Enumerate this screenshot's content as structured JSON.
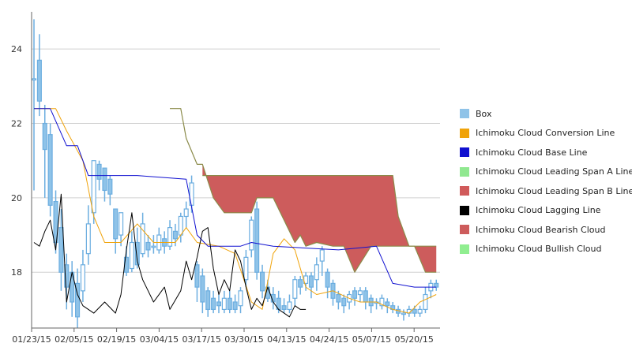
{
  "chart_data": {
    "type": "candlestick",
    "x_tick_labels": [
      "01/23/15",
      "02/05/15",
      "02/19/15",
      "03/04/15",
      "03/17/15",
      "03/30/15",
      "04/13/15",
      "04/24/15",
      "05/07/15",
      "05/20/15"
    ],
    "y_tick_labels": [
      "18",
      "20",
      "22",
      "24"
    ],
    "ylim": [
      16.5,
      25
    ],
    "y_ticks": [
      18,
      20,
      22,
      24
    ],
    "grid": "horizontal",
    "legend_position": "right",
    "colors": {
      "box": "#8FC3E8",
      "box_outline": "#6CAEE0",
      "conversion": "#F0A30A",
      "base": "#1010D0",
      "span_a": "#90E890",
      "span_b": "#D05A5A",
      "lagging": "#000000",
      "bearish": "#CD5C5C",
      "bullish": "#90EE90",
      "span_line": "#8B8B4A",
      "grid": "#D0D0D0"
    },
    "legend": [
      {
        "label": "Box",
        "color": "#8FC3E8"
      },
      {
        "label": "Ichimoku Cloud Conversion Line",
        "color": "#F0A30A"
      },
      {
        "label": "Ichimoku Cloud Base Line",
        "color": "#1010D0"
      },
      {
        "label": "Ichimoku Cloud Leading Span A Line",
        "color": "#90E890"
      },
      {
        "label": "Ichimoku Cloud Leading Span B Line",
        "color": "#D05A5A"
      },
      {
        "label": "Ichimoku Cloud Lagging Line",
        "color": "#000000"
      },
      {
        "label": "Ichimoku Cloud Bearish Cloud",
        "color": "#CD5C5C"
      },
      {
        "label": "Ichimoku Cloud Bullish Cloud",
        "color": "#90EE90"
      }
    ],
    "candles": [
      [
        23.2,
        23.2,
        24.8,
        20.2
      ],
      [
        23.7,
        22.6,
        24.4,
        22.2
      ],
      [
        22.0,
        21.3,
        22.5,
        20.0
      ],
      [
        21.7,
        19.8,
        22.0,
        19.5
      ],
      [
        19.9,
        18.8,
        20.2,
        18.5
      ],
      [
        19.2,
        18.0,
        19.7,
        17.5
      ],
      [
        18.2,
        17.6,
        18.5,
        17.0
      ],
      [
        18.0,
        17.2,
        18.3,
        16.8
      ],
      [
        17.7,
        16.8,
        18.1,
        16.5
      ],
      [
        17.5,
        18.2,
        18.6,
        17.2
      ],
      [
        18.5,
        19.3,
        19.8,
        18.2
      ],
      [
        19.6,
        21.0,
        21.0,
        19.3
      ],
      [
        20.9,
        20.5,
        21.0,
        20.2
      ],
      [
        20.8,
        20.2,
        20.8,
        19.9
      ],
      [
        20.5,
        20.1,
        20.6,
        19.8
      ],
      [
        19.7,
        18.9,
        19.7,
        18.5
      ],
      [
        19.0,
        19.6,
        19.6,
        18.7
      ],
      [
        18.4,
        18.0,
        18.7,
        17.9
      ],
      [
        18.1,
        18.8,
        19.1,
        18.0
      ],
      [
        18.8,
        18.2,
        19.2,
        18.1
      ],
      [
        18.5,
        19.3,
        19.6,
        18.4
      ],
      [
        18.8,
        18.6,
        19.0,
        18.4
      ],
      [
        18.7,
        18.7,
        19.0,
        18.5
      ],
      [
        18.6,
        19.0,
        19.2,
        18.5
      ],
      [
        18.9,
        18.7,
        19.1,
        18.5
      ],
      [
        18.7,
        19.2,
        19.4,
        18.6
      ],
      [
        19.1,
        18.9,
        19.3,
        18.7
      ],
      [
        19.0,
        19.5,
        19.6,
        18.8
      ],
      [
        19.5,
        19.7,
        19.9,
        19.2
      ],
      [
        19.8,
        20.4,
        20.6,
        19.6
      ],
      [
        18.2,
        17.6,
        18.3,
        17.2
      ],
      [
        17.9,
        17.2,
        18.1,
        16.9
      ],
      [
        17.5,
        17.0,
        17.6,
        16.8
      ],
      [
        17.3,
        17.0,
        17.5,
        16.9
      ],
      [
        17.2,
        17.1,
        17.4,
        16.9
      ],
      [
        17.0,
        17.3,
        17.5,
        16.9
      ],
      [
        17.3,
        17.0,
        17.5,
        16.9
      ],
      [
        17.2,
        17.0,
        17.4,
        16.9
      ],
      [
        17.1,
        17.5,
        17.6,
        16.9
      ],
      [
        17.8,
        18.4,
        18.6,
        17.6
      ],
      [
        18.6,
        19.4,
        19.5,
        18.4
      ],
      [
        19.7,
        18.0,
        19.9,
        17.8
      ],
      [
        18.0,
        17.5,
        18.2,
        17.3
      ],
      [
        17.6,
        17.3,
        17.8,
        17.2
      ],
      [
        17.4,
        17.2,
        17.6,
        17.0
      ],
      [
        17.3,
        17.0,
        17.5,
        16.9
      ],
      [
        17.1,
        17.0,
        17.3,
        16.9
      ],
      [
        17.0,
        17.2,
        17.4,
        16.9
      ],
      [
        17.3,
        17.8,
        17.9,
        17.1
      ],
      [
        17.8,
        17.6,
        17.9,
        17.4
      ],
      [
        17.7,
        17.9,
        18.0,
        17.5
      ],
      [
        17.9,
        17.6,
        18.0,
        17.3
      ],
      [
        17.8,
        18.2,
        18.4,
        17.5
      ],
      [
        18.3,
        18.6,
        18.7,
        17.9
      ],
      [
        18.0,
        17.6,
        18.1,
        17.3
      ],
      [
        17.7,
        17.3,
        17.8,
        17.1
      ],
      [
        17.4,
        17.2,
        17.5,
        17.0
      ],
      [
        17.3,
        17.1,
        17.4,
        16.9
      ],
      [
        17.2,
        17.4,
        17.5,
        17.0
      ],
      [
        17.5,
        17.3,
        17.6,
        17.1
      ],
      [
        17.4,
        17.5,
        17.6,
        17.2
      ],
      [
        17.5,
        17.2,
        17.6,
        17.0
      ],
      [
        17.3,
        17.1,
        17.4,
        16.9
      ],
      [
        17.2,
        17.2,
        17.3,
        17.0
      ],
      [
        17.1,
        17.3,
        17.4,
        17.0
      ],
      [
        17.2,
        17.1,
        17.3,
        16.9
      ],
      [
        17.1,
        17.0,
        17.2,
        16.9
      ],
      [
        17.0,
        16.9,
        17.1,
        16.8
      ],
      [
        16.9,
        16.9,
        17.0,
        16.7
      ],
      [
        16.9,
        17.0,
        17.1,
        16.8
      ],
      [
        17.0,
        16.9,
        17.1,
        16.8
      ],
      [
        16.9,
        17.0,
        17.1,
        16.8
      ],
      [
        17.0,
        17.4,
        17.6,
        16.9
      ],
      [
        17.5,
        17.7,
        17.8,
        17.3
      ],
      [
        17.7,
        17.6,
        17.8,
        17.5
      ]
    ],
    "conversion_line": [
      [
        0,
        22.4
      ],
      [
        4,
        22.4
      ],
      [
        6,
        21.8
      ],
      [
        9,
        21.0
      ],
      [
        11,
        19.5
      ],
      [
        13,
        18.8
      ],
      [
        16,
        18.8
      ],
      [
        19,
        19.3
      ],
      [
        22,
        18.8
      ],
      [
        26,
        18.8
      ],
      [
        28,
        19.2
      ],
      [
        30,
        18.8
      ],
      [
        34,
        18.7
      ],
      [
        37,
        18.5
      ],
      [
        40,
        17.2
      ],
      [
        42,
        17.0
      ],
      [
        44,
        18.5
      ],
      [
        46,
        18.9
      ],
      [
        48,
        18.6
      ],
      [
        50,
        17.6
      ],
      [
        52,
        17.4
      ],
      [
        55,
        17.5
      ],
      [
        58,
        17.3
      ],
      [
        60,
        17.2
      ],
      [
        63,
        17.2
      ],
      [
        66,
        17.0
      ],
      [
        69,
        16.9
      ],
      [
        71,
        17.2
      ],
      [
        74,
        17.4
      ]
    ],
    "base_line": [
      [
        0,
        22.4
      ],
      [
        3,
        22.4
      ],
      [
        6,
        21.4
      ],
      [
        8,
        21.4
      ],
      [
        10,
        20.6
      ],
      [
        19,
        20.6
      ],
      [
        28,
        20.5
      ],
      [
        30,
        19.0
      ],
      [
        32,
        18.7
      ],
      [
        38,
        18.7
      ],
      [
        40,
        18.8
      ],
      [
        44,
        18.7
      ],
      [
        56,
        18.6
      ],
      [
        63,
        18.7
      ],
      [
        66,
        17.7
      ],
      [
        70,
        17.6
      ],
      [
        74,
        17.6
      ]
    ],
    "span_a_line": [
      [
        25,
        22.4
      ],
      [
        27,
        22.4
      ],
      [
        28,
        21.6
      ],
      [
        30,
        20.9
      ],
      [
        31,
        20.9
      ],
      [
        33,
        20.0
      ],
      [
        35,
        19.6
      ],
      [
        40,
        19.6
      ],
      [
        41,
        20.0
      ],
      [
        44,
        20.0
      ],
      [
        46,
        19.4
      ],
      [
        48,
        18.8
      ],
      [
        49,
        19.0
      ],
      [
        50,
        18.7
      ],
      [
        52,
        18.8
      ],
      [
        55,
        18.7
      ],
      [
        57,
        18.7
      ],
      [
        59,
        18.0
      ],
      [
        62,
        18.7
      ],
      [
        70,
        18.7
      ],
      [
        72,
        18.0
      ],
      [
        74,
        18.0
      ]
    ],
    "span_b_line": [
      [
        31,
        20.6
      ],
      [
        66,
        20.6
      ],
      [
        67,
        19.5
      ],
      [
        69,
        18.7
      ],
      [
        74,
        18.7
      ]
    ],
    "lagging_line": [
      [
        0,
        18.8
      ],
      [
        1,
        18.7
      ],
      [
        2,
        19.1
      ],
      [
        3,
        19.4
      ],
      [
        4,
        18.6
      ],
      [
        5,
        20.1
      ],
      [
        6,
        17.2
      ],
      [
        7,
        18.0
      ],
      [
        8,
        17.4
      ],
      [
        9,
        17.1
      ],
      [
        11,
        16.9
      ],
      [
        13,
        17.2
      ],
      [
        15,
        16.9
      ],
      [
        16,
        17.4
      ],
      [
        17,
        18.6
      ],
      [
        18,
        19.6
      ],
      [
        19,
        18.3
      ],
      [
        20,
        17.8
      ],
      [
        22,
        17.2
      ],
      [
        24,
        17.6
      ],
      [
        25,
        17.0
      ],
      [
        27,
        17.5
      ],
      [
        28,
        18.3
      ],
      [
        29,
        17.8
      ],
      [
        30,
        18.4
      ],
      [
        31,
        19.1
      ],
      [
        32,
        19.2
      ],
      [
        33,
        18.1
      ],
      [
        34,
        17.4
      ],
      [
        35,
        17.8
      ],
      [
        36,
        17.5
      ],
      [
        37,
        18.6
      ],
      [
        38,
        18.3
      ],
      [
        39,
        17.6
      ],
      [
        40,
        17.0
      ],
      [
        41,
        17.3
      ],
      [
        42,
        17.1
      ],
      [
        43,
        17.6
      ],
      [
        44,
        17.2
      ],
      [
        45,
        17.0
      ],
      [
        46,
        16.9
      ],
      [
        47,
        16.8
      ],
      [
        48,
        17.1
      ],
      [
        49,
        17.0
      ],
      [
        50,
        17.0
      ]
    ],
    "bearish_cloud": [
      [
        31,
        20.6,
        20.9
      ],
      [
        33,
        20.6,
        20.0
      ],
      [
        35,
        20.6,
        19.6
      ],
      [
        40,
        20.6,
        19.6
      ],
      [
        41,
        20.6,
        20.0
      ],
      [
        44,
        20.6,
        20.0
      ],
      [
        46,
        20.6,
        19.4
      ],
      [
        48,
        20.6,
        18.8
      ],
      [
        49,
        20.6,
        19.0
      ],
      [
        50,
        20.6,
        18.7
      ],
      [
        52,
        20.6,
        18.8
      ],
      [
        55,
        20.6,
        18.7
      ],
      [
        57,
        20.6,
        18.7
      ],
      [
        59,
        20.6,
        18.0
      ],
      [
        62,
        20.6,
        18.7
      ],
      [
        66,
        20.6,
        18.7
      ],
      [
        67,
        19.5,
        18.7
      ],
      [
        69,
        18.7,
        18.7
      ],
      [
        70,
        18.7,
        18.7
      ],
      [
        72,
        18.7,
        18.0
      ],
      [
        74,
        18.7,
        18.0
      ]
    ]
  }
}
